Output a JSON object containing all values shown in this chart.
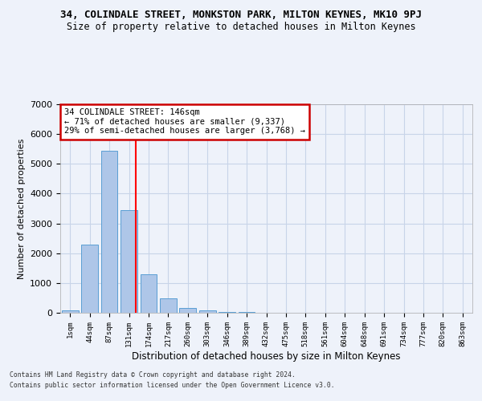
{
  "title_line1": "34, COLINDALE STREET, MONKSTON PARK, MILTON KEYNES, MK10 9PJ",
  "title_line2": "Size of property relative to detached houses in Milton Keynes",
  "xlabel": "Distribution of detached houses by size in Milton Keynes",
  "ylabel": "Number of detached properties",
  "bin_labels": [
    "1sqm",
    "44sqm",
    "87sqm",
    "131sqm",
    "174sqm",
    "217sqm",
    "260sqm",
    "303sqm",
    "346sqm",
    "389sqm",
    "432sqm",
    "475sqm",
    "518sqm",
    "561sqm",
    "604sqm",
    "648sqm",
    "691sqm",
    "734sqm",
    "777sqm",
    "820sqm",
    "863sqm"
  ],
  "bar_heights": [
    75,
    2300,
    5450,
    3450,
    1300,
    475,
    175,
    75,
    30,
    15,
    8,
    5,
    3,
    2,
    1,
    1,
    0,
    0,
    0,
    0,
    0
  ],
  "bar_color": "#aec6e8",
  "bar_edgecolor": "#5a9fd4",
  "red_line_x": 3.35,
  "annotation_text": "34 COLINDALE STREET: 146sqm\n← 71% of detached houses are smaller (9,337)\n29% of semi-detached houses are larger (3,768) →",
  "annotation_box_color": "#ffffff",
  "annotation_border_color": "#cc0000",
  "ylim": [
    0,
    7000
  ],
  "yticks": [
    0,
    1000,
    2000,
    3000,
    4000,
    5000,
    6000,
    7000
  ],
  "footer_line1": "Contains HM Land Registry data © Crown copyright and database right 2024.",
  "footer_line2": "Contains public sector information licensed under the Open Government Licence v3.0.",
  "bg_color": "#eef2fa",
  "grid_color": "#c8d4e8"
}
